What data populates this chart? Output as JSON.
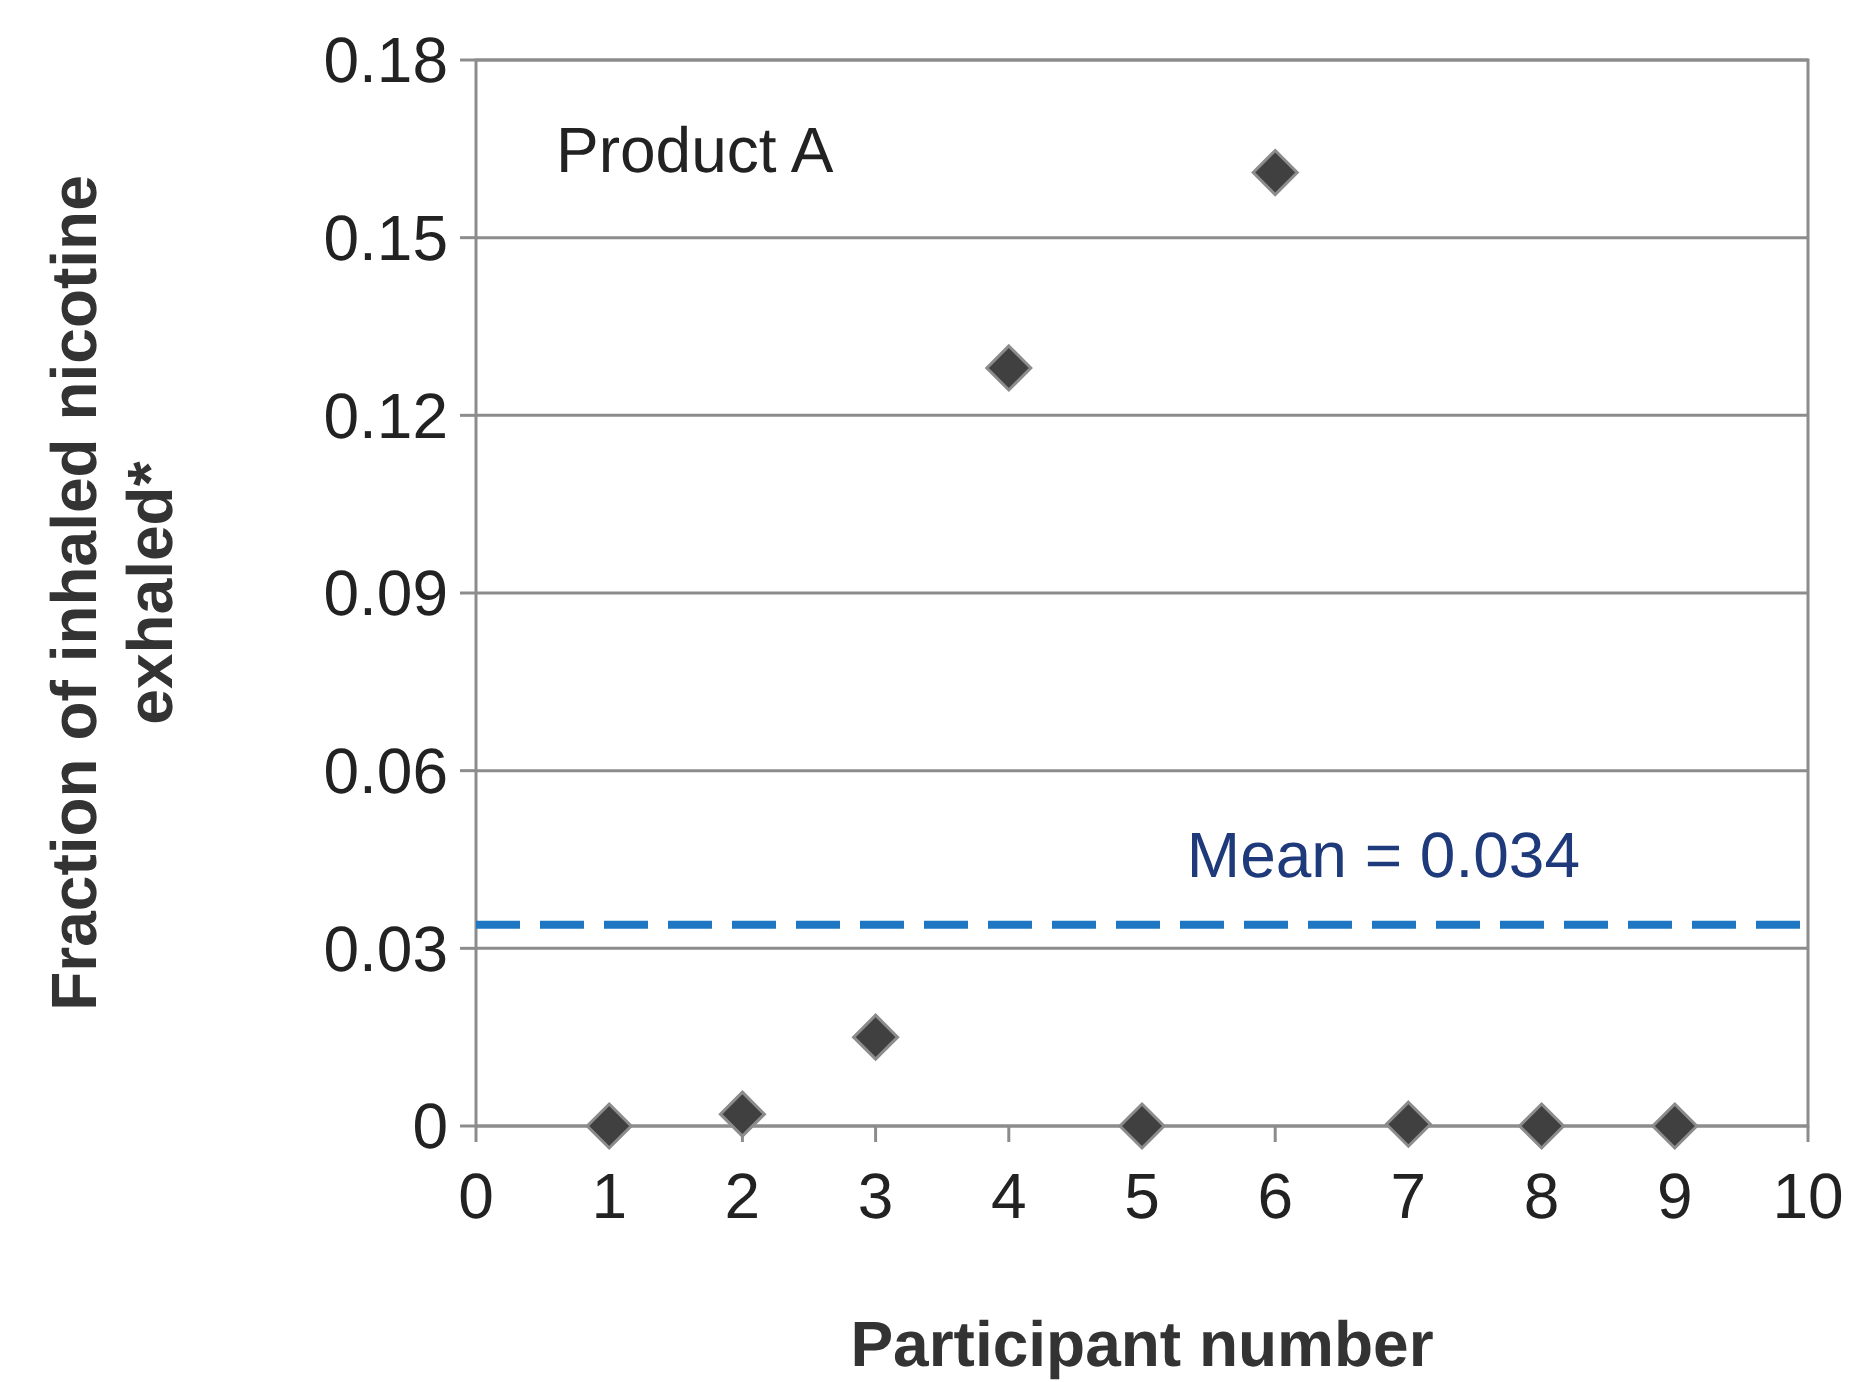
{
  "chart_data": {
    "type": "scatter",
    "xlabel": "Participant number",
    "ylabel": "Fraction of inhaled nicotine\nexhaled*",
    "annotations": [
      "Product A"
    ],
    "x": [
      1,
      2,
      3,
      4,
      5,
      6,
      7,
      8,
      9
    ],
    "series": [
      {
        "color": "#404040",
        "values": [
          0,
          0.002,
          0.015,
          0.128,
          0,
          0.161,
          0.0003,
          0,
          0
        ]
      }
    ],
    "xlim": [
      0,
      10
    ],
    "xticks": [
      0,
      1,
      2,
      3,
      4,
      5,
      6,
      7,
      8,
      9,
      10
    ],
    "ylim": [
      0,
      0.18
    ],
    "yticks": [
      0,
      0.03,
      0.06,
      0.09,
      0.12,
      0.15,
      0.18
    ],
    "grid": "y",
    "marker": "diamond",
    "ref_lines": [
      {
        "axis": "y",
        "value": 0.034,
        "label": "Mean = 0.034",
        "color": "#1f77c4",
        "line_style": "dashed"
      }
    ]
  }
}
